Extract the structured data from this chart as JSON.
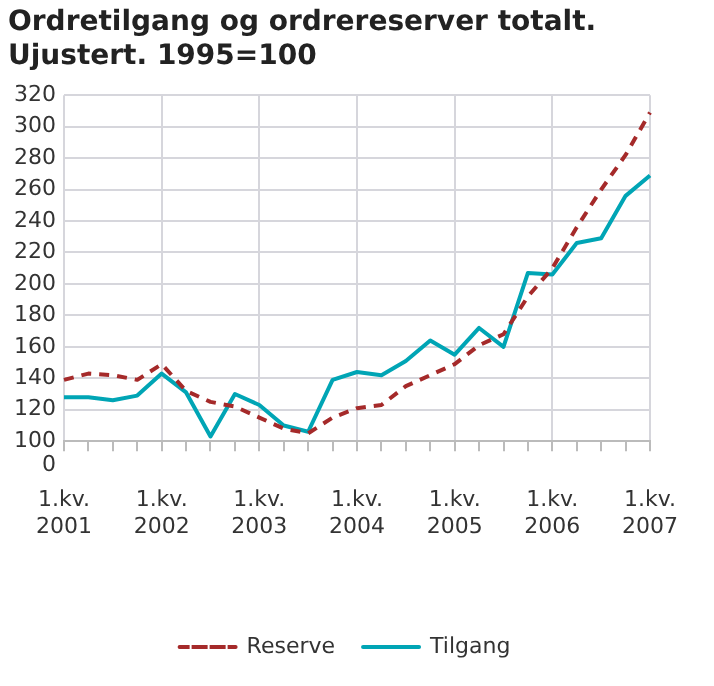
{
  "chart_data": {
    "type": "line",
    "title": "Ordretilgang og ordrereserver totalt. Ujustert. 1995=100",
    "categories": [
      "1.kv.\n2001",
      null,
      null,
      null,
      "1.kv.\n2002",
      null,
      null,
      null,
      "1.kv.\n2003",
      null,
      null,
      null,
      "1.kv.\n2004",
      null,
      null,
      null,
      "1.kv.\n2005",
      null,
      null,
      null,
      "1.kv.\n2006",
      null,
      null,
      null,
      "1.kv.\n2007"
    ],
    "series": [
      {
        "name": "Reserve",
        "color": "#a52a2a",
        "line_style": "dashed",
        "values": [
          139,
          143,
          142,
          139,
          149,
          132,
          125,
          122,
          115,
          108,
          105,
          115,
          121,
          123,
          135,
          142,
          149,
          161,
          168,
          192,
          210,
          236,
          260,
          282,
          309
        ]
      },
      {
        "name": "Tilgang",
        "color": "#00a5b5",
        "line_style": "solid",
        "values": [
          128,
          128,
          126,
          129,
          143,
          131,
          103,
          130,
          123,
          110,
          106,
          139,
          144,
          142,
          151,
          164,
          155,
          172,
          160,
          207,
          206,
          226,
          229,
          256,
          269
        ]
      }
    ],
    "annotations": [
      "0"
    ],
    "ylim": [
      100,
      320
    ],
    "yticks": [
      100,
      120,
      140,
      160,
      180,
      200,
      220,
      240,
      260,
      280,
      300,
      320
    ],
    "grid": true,
    "legend": "bottom",
    "marker": "none"
  }
}
